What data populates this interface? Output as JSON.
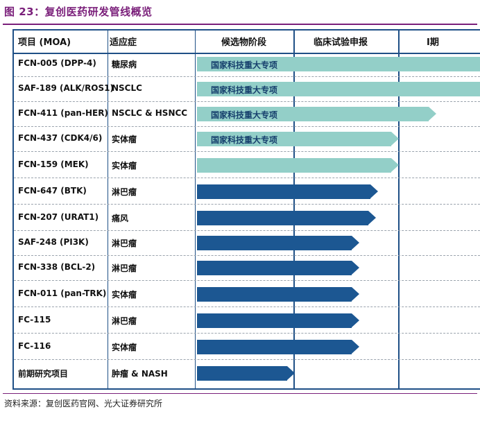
{
  "title": "图 23：复创医药研发管线概览",
  "headers": {
    "drug": "项目 (MOA)",
    "indication": "适应症",
    "stage_candidate": "候选物阶段",
    "stage_ind": "临床试验申报",
    "stage_phase1": "I期"
  },
  "rows": [
    {
      "drug": "FCN-005 (DPP-4)",
      "indication": "糖尿病",
      "label": "国家科技重大专项",
      "color": "#93cfc8"
    },
    {
      "drug": "SAF-189 (ALK/ROS1)",
      "indication": "NSCLC",
      "label": "国家科技重大专项",
      "color": "#93cfc8"
    },
    {
      "drug": "FCN-411 (pan-HER)",
      "indication": "NSCLC & HSNCC",
      "label": "国家科技重大专项",
      "color": "#93cfc8"
    },
    {
      "drug": "FCN-437 (CDK4/6)",
      "indication": "实体瘤",
      "label": "国家科技重大专项",
      "color": "#93cfc8"
    },
    {
      "drug": "FCN-159 (MEK)",
      "indication": "实体瘤",
      "label": "",
      "color": "#93cfc8"
    },
    {
      "drug": "FCN-647 (BTK)",
      "indication": "淋巴瘤",
      "label": "",
      "color": "#1c5792"
    },
    {
      "drug": "FCN-207 (URAT1)",
      "indication": "痛风",
      "label": "",
      "color": "#1c5792"
    },
    {
      "drug": "SAF-248 (PI3K)",
      "indication": "淋巴瘤",
      "label": "",
      "color": "#1c5792"
    },
    {
      "drug": "FCN-338 (BCL-2)",
      "indication": "淋巴瘤",
      "label": "",
      "color": "#1c5792"
    },
    {
      "drug": "FCN-011 (pan-TRK)",
      "indication": "实体瘤",
      "label": "",
      "color": "#1c5792"
    },
    {
      "drug": "FC-115",
      "indication": "淋巴瘤",
      "label": "",
      "color": "#1c5792"
    },
    {
      "drug": "FC-116",
      "indication": "实体瘤",
      "label": "",
      "color": "#1c5792"
    },
    {
      "drug": "前期研究项目",
      "indication": "肿瘤 & NASH",
      "label": "",
      "color": "#1c5792"
    }
  ],
  "source": "资料来源：复创医药官网、光大证券研究所"
}
